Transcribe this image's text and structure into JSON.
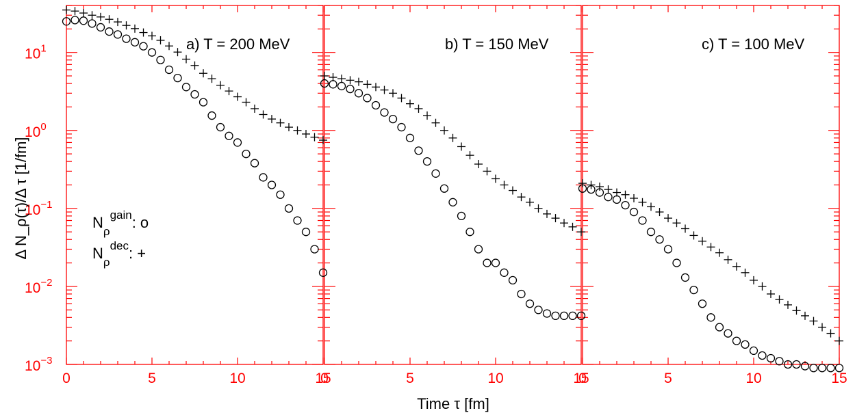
{
  "chart_data": {
    "type": "scatter",
    "x_label": "Time τ [fm]",
    "y_label": "Δ N_ρ(τ)/Δ τ [1/fm]",
    "y_scale": "log",
    "ylim": [
      0.001,
      40
    ],
    "y_ticks": [
      {
        "value": 0.001,
        "base": "10",
        "exp": "−3"
      },
      {
        "value": 0.01,
        "base": "10",
        "exp": "−2"
      },
      {
        "value": 0.1,
        "base": "10",
        "exp": "−1"
      },
      {
        "value": 1,
        "base": "10",
        "exp": "0"
      },
      {
        "value": 10,
        "base": "10",
        "exp": "1"
      }
    ],
    "x_ticks": [
      "0",
      "5",
      "10",
      "15"
    ],
    "legend": {
      "gain": {
        "sym": "N",
        "sub": "ρ",
        "sup": "gain",
        "suffix": ": o"
      },
      "dec": {
        "sym": "N",
        "sub": "ρ",
        "sup": "dec",
        "suffix": ": +"
      }
    },
    "series_markers": {
      "gain": "circle",
      "dec": "plus"
    },
    "colors": {
      "axis": "#ff0000",
      "data": "#000000"
    },
    "panels": [
      {
        "label": "a) T = 200 MeV",
        "xlim": [
          0,
          15
        ],
        "dec": [
          [
            0,
            35
          ],
          [
            0.5,
            33.9
          ],
          [
            1,
            32
          ],
          [
            1.5,
            30
          ],
          [
            2,
            28.5
          ],
          [
            2.5,
            26.6
          ],
          [
            3,
            24.6
          ],
          [
            3.5,
            22.2
          ],
          [
            4,
            20.2
          ],
          [
            4.5,
            18
          ],
          [
            5,
            16.3
          ],
          [
            5.5,
            14.3
          ],
          [
            6,
            12.1
          ],
          [
            6.5,
            10.1
          ],
          [
            7,
            8.2
          ],
          [
            7.5,
            6.8
          ],
          [
            8,
            5.4
          ],
          [
            8.5,
            4.6
          ],
          [
            9,
            3.8
          ],
          [
            9.5,
            3.2
          ],
          [
            10,
            2.7
          ],
          [
            10.5,
            2.3
          ],
          [
            11,
            1.9
          ],
          [
            11.5,
            1.6
          ],
          [
            12,
            1.4
          ],
          [
            12.5,
            1.25
          ],
          [
            13,
            1.1
          ],
          [
            13.5,
            1
          ],
          [
            14,
            0.9
          ],
          [
            14.5,
            0.82
          ],
          [
            15,
            0.75
          ]
        ],
        "gain": [
          [
            0,
            25
          ],
          [
            0.5,
            26
          ],
          [
            1,
            25.5
          ],
          [
            1.5,
            23.5
          ],
          [
            2,
            21
          ],
          [
            2.5,
            18.5
          ],
          [
            3,
            17
          ],
          [
            3.5,
            15
          ],
          [
            4,
            13.5
          ],
          [
            4.5,
            12
          ],
          [
            5,
            10
          ],
          [
            5.5,
            8
          ],
          [
            6,
            6
          ],
          [
            6.5,
            4.7
          ],
          [
            7,
            3.6
          ],
          [
            7.5,
            2.9
          ],
          [
            8,
            2.3
          ],
          [
            8.5,
            1.55
          ],
          [
            9,
            1.1
          ],
          [
            9.5,
            0.85
          ],
          [
            10,
            0.7
          ],
          [
            10.5,
            0.5
          ],
          [
            11,
            0.38
          ],
          [
            11.5,
            0.25
          ],
          [
            12,
            0.2
          ],
          [
            12.5,
            0.15
          ],
          [
            13,
            0.1
          ],
          [
            13.5,
            0.07
          ],
          [
            14,
            0.05
          ],
          [
            14.5,
            0.03
          ],
          [
            15,
            0.015
          ]
        ]
      },
      {
        "label": "b) T = 150 MeV",
        "xlim": [
          0,
          15
        ],
        "dec": [
          [
            0,
            5
          ],
          [
            0.5,
            4.8
          ],
          [
            1,
            4.6
          ],
          [
            1.5,
            4.4
          ],
          [
            2,
            4.2
          ],
          [
            2.5,
            3.9
          ],
          [
            3,
            3.6
          ],
          [
            3.5,
            3.3
          ],
          [
            4,
            3
          ],
          [
            4.5,
            2.6
          ],
          [
            5,
            2.2
          ],
          [
            5.5,
            1.9
          ],
          [
            6,
            1.55
          ],
          [
            6.5,
            1.25
          ],
          [
            7,
            1
          ],
          [
            7.5,
            0.8
          ],
          [
            8,
            0.62
          ],
          [
            8.5,
            0.48
          ],
          [
            9,
            0.37
          ],
          [
            9.5,
            0.3
          ],
          [
            10,
            0.24
          ],
          [
            10.5,
            0.2
          ],
          [
            11,
            0.17
          ],
          [
            11.5,
            0.14
          ],
          [
            12,
            0.12
          ],
          [
            12.5,
            0.1
          ],
          [
            13,
            0.085
          ],
          [
            13.5,
            0.075
          ],
          [
            14,
            0.065
          ],
          [
            14.5,
            0.058
          ],
          [
            15,
            0.05
          ]
        ],
        "gain": [
          [
            0,
            4
          ],
          [
            0.5,
            3.9
          ],
          [
            1,
            3.7
          ],
          [
            1.5,
            3.4
          ],
          [
            2,
            3
          ],
          [
            2.5,
            2.6
          ],
          [
            3,
            2.1
          ],
          [
            3.5,
            1.7
          ],
          [
            4,
            1.4
          ],
          [
            4.5,
            1.1
          ],
          [
            5,
            0.8
          ],
          [
            5.5,
            0.55
          ],
          [
            6,
            0.4
          ],
          [
            6.5,
            0.28
          ],
          [
            7,
            0.18
          ],
          [
            7.5,
            0.12
          ],
          [
            8,
            0.08
          ],
          [
            8.5,
            0.05
          ],
          [
            9,
            0.03
          ],
          [
            9.5,
            0.02
          ],
          [
            10,
            0.02
          ],
          [
            10.5,
            0.015
          ],
          [
            11,
            0.012
          ],
          [
            11.5,
            0.008
          ],
          [
            12,
            0.006
          ],
          [
            12.5,
            0.005
          ],
          [
            13,
            0.0045
          ],
          [
            13.5,
            0.0042
          ],
          [
            14,
            0.0042
          ],
          [
            14.5,
            0.0042
          ],
          [
            15,
            0.0042
          ]
        ]
      },
      {
        "label": "c) T = 100 MeV",
        "xlim": [
          0,
          15
        ],
        "dec": [
          [
            0,
            0.21
          ],
          [
            0.5,
            0.2
          ],
          [
            1,
            0.19
          ],
          [
            1.5,
            0.175
          ],
          [
            2,
            0.16
          ],
          [
            2.5,
            0.15
          ],
          [
            3,
            0.135
          ],
          [
            3.5,
            0.12
          ],
          [
            4,
            0.105
          ],
          [
            4.5,
            0.09
          ],
          [
            5,
            0.075
          ],
          [
            5.5,
            0.065
          ],
          [
            6,
            0.055
          ],
          [
            6.5,
            0.045
          ],
          [
            7,
            0.038
          ],
          [
            7.5,
            0.032
          ],
          [
            8,
            0.027
          ],
          [
            8.5,
            0.022
          ],
          [
            9,
            0.018
          ],
          [
            9.5,
            0.015
          ],
          [
            10,
            0.012
          ],
          [
            10.5,
            0.01
          ],
          [
            11,
            0.008
          ],
          [
            11.5,
            0.0068
          ],
          [
            12,
            0.0058
          ],
          [
            12.5,
            0.0049
          ],
          [
            13,
            0.0042
          ],
          [
            13.5,
            0.0036
          ],
          [
            14,
            0.003
          ],
          [
            14.5,
            0.0025
          ],
          [
            15,
            0.002
          ]
        ],
        "gain": [
          [
            0,
            0.18
          ],
          [
            0.5,
            0.175
          ],
          [
            1,
            0.16
          ],
          [
            1.5,
            0.14
          ],
          [
            2,
            0.13
          ],
          [
            2.5,
            0.11
          ],
          [
            3,
            0.09
          ],
          [
            3.5,
            0.07
          ],
          [
            4,
            0.05
          ],
          [
            4.5,
            0.04
          ],
          [
            5,
            0.03
          ],
          [
            5.5,
            0.02
          ],
          [
            6,
            0.013
          ],
          [
            6.5,
            0.009
          ],
          [
            7,
            0.006
          ],
          [
            7.5,
            0.004
          ],
          [
            8,
            0.003
          ],
          [
            8.5,
            0.0025
          ],
          [
            9,
            0.002
          ],
          [
            9.5,
            0.0018
          ],
          [
            10,
            0.0015
          ],
          [
            10.5,
            0.0013
          ],
          [
            11,
            0.0012
          ],
          [
            11.5,
            0.0011
          ],
          [
            12,
            0.001
          ],
          [
            12.5,
            0.001
          ],
          [
            13,
            0.00095
          ],
          [
            13.5,
            0.0009
          ],
          [
            14,
            0.0009
          ],
          [
            14.5,
            0.0009
          ],
          [
            15,
            0.0009
          ]
        ]
      }
    ]
  }
}
